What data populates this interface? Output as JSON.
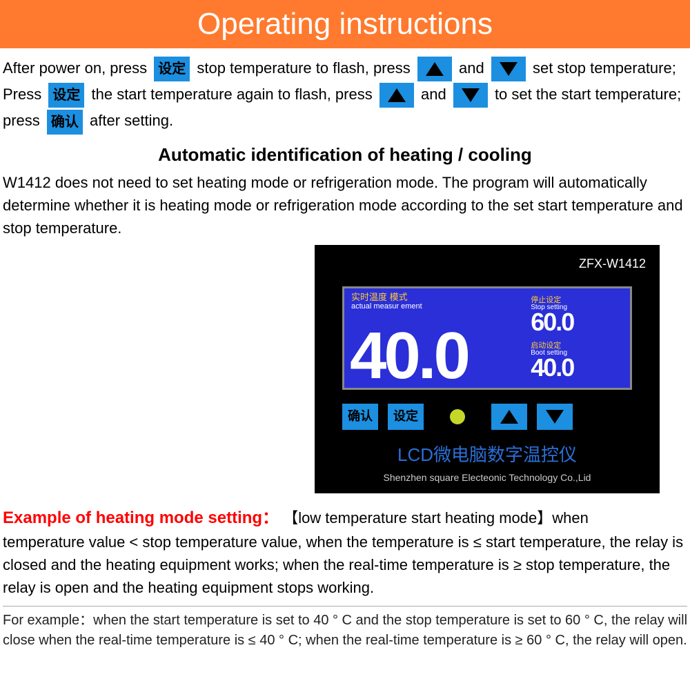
{
  "header": {
    "text": "Operating instructions",
    "bg_color": "#ff7a2e",
    "text_color": "#ffffff"
  },
  "buttons": {
    "set_cn": "设定",
    "confirm_cn": "确认",
    "btn_bg": "#1c8fe0"
  },
  "instructions": {
    "l1a": "After power on, press",
    "l1b": "stop temperature to flash, press",
    "l1c": "and",
    "l1d": "set stop temperature;",
    "l2a": "Press",
    "l2b": "the start temperature again to flash, press",
    "l2c": "and",
    "l2d": "to set the start temperature;",
    "l3a": "press",
    "l3b": "after setting."
  },
  "auto": {
    "heading": "Automatic identification of heating / cooling",
    "body": "W1412  does not need to set heating mode or refrigeration mode. The program will automatically determine whether it is heating mode or refrigeration mode according to the set start temperature and stop temperature."
  },
  "device": {
    "model": "ZFX-W1412",
    "lcd": {
      "left_cn": "实时温度   模式",
      "left_en": "actual measur ement",
      "main_value": "40.0",
      "stop_cn": "停止设定",
      "stop_en": "Stop setting",
      "stop_val": "60.0",
      "boot_cn": "启动设定",
      "boot_en": "Boot setting",
      "boot_val": "40.0"
    },
    "title_cn": "LCD微电脑数字温控仪",
    "subtitle": "Shenzhen square Electeonic Technology Co.,Lid"
  },
  "example": {
    "head": "Example of heating mode setting：",
    "head_color": "#ff0000",
    "tag": "【low temperature start heating mode】when",
    "body": "temperature value < stop temperature value, when the temperature is ≤ start temperature, the relay is closed and the heating equipment works; when the real-time temperature is ≥ stop temperature, the relay is open and the heating equipment stops working.",
    "for_example": "For example：when the start temperature is set to 40 ° C and the stop temperature is set to 60 ° C, the relay will close when the real-time temperature is ≤ 40 ° C; when the real-time temperature is ≥ 60 ° C, the relay will open."
  }
}
